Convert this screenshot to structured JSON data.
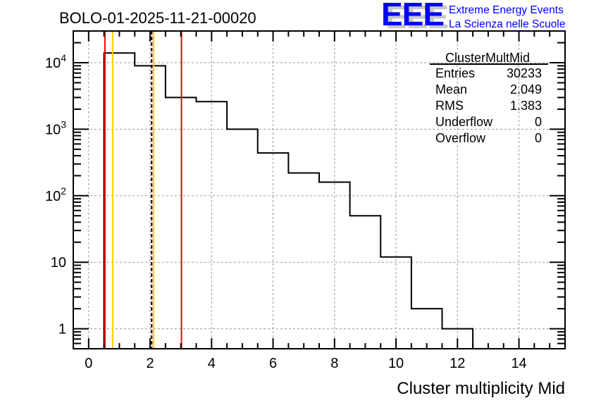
{
  "chart_data": {
    "type": "bar",
    "style": "step-histogram",
    "title": "BOLO-01-2025-11-21-00020",
    "xlabel": "Cluster multiplicity Mid",
    "ylabel": "",
    "xlim": [
      -0.5,
      15.5
    ],
    "ylim": [
      0.5,
      30000
    ],
    "yscale": "log",
    "grid": true,
    "x_ticks": [
      0,
      2,
      4,
      6,
      8,
      10,
      12,
      14
    ],
    "x_tick_labels": [
      "0",
      "2",
      "4",
      "6",
      "8",
      "10",
      "12",
      "14"
    ],
    "y_ticks": [
      1,
      10,
      100,
      1000,
      10000
    ],
    "y_tick_labels": [
      {
        "base": "1",
        "exp": ""
      },
      {
        "base": "10",
        "exp": ""
      },
      {
        "base": "10",
        "exp": "2"
      },
      {
        "base": "10",
        "exp": "3"
      },
      {
        "base": "10",
        "exp": "4"
      }
    ],
    "bin_edges": [
      0.5,
      1.5,
      2.5,
      3.5,
      4.5,
      5.5,
      6.5,
      7.5,
      8.5,
      9.5,
      10.5,
      11.5,
      12.5
    ],
    "values": [
      14000,
      9000,
      3000,
      2600,
      1000,
      440,
      220,
      160,
      50,
      12,
      2,
      1
    ],
    "vertical_lines": [
      {
        "x": 0.53,
        "color": "#ff0000",
        "style": "solid"
      },
      {
        "x": 0.78,
        "color": "#ffcc00",
        "style": "solid"
      },
      {
        "x": 2.05,
        "color": "#000000",
        "style": "dashed"
      },
      {
        "x": 2.11,
        "color": "#ffcc00",
        "style": "solid"
      },
      {
        "x": 3.02,
        "color": "#ff0000",
        "style": "solid"
      }
    ],
    "stats_box": {
      "title": "ClusterMultMid",
      "legend_placement": "top-right",
      "rows": [
        {
          "label": "Entries",
          "value": "30233"
        },
        {
          "label": "Mean",
          "value": "2.049"
        },
        {
          "label": "RMS",
          "value": "1.383"
        },
        {
          "label": "Underflow",
          "value": "0"
        },
        {
          "label": "Overflow",
          "value": "0"
        }
      ]
    }
  },
  "logo": {
    "letters": "EEE",
    "line1": "Extreme Energy Events",
    "line2": "La Scienza nelle Scuole",
    "color": "#0000ff"
  }
}
